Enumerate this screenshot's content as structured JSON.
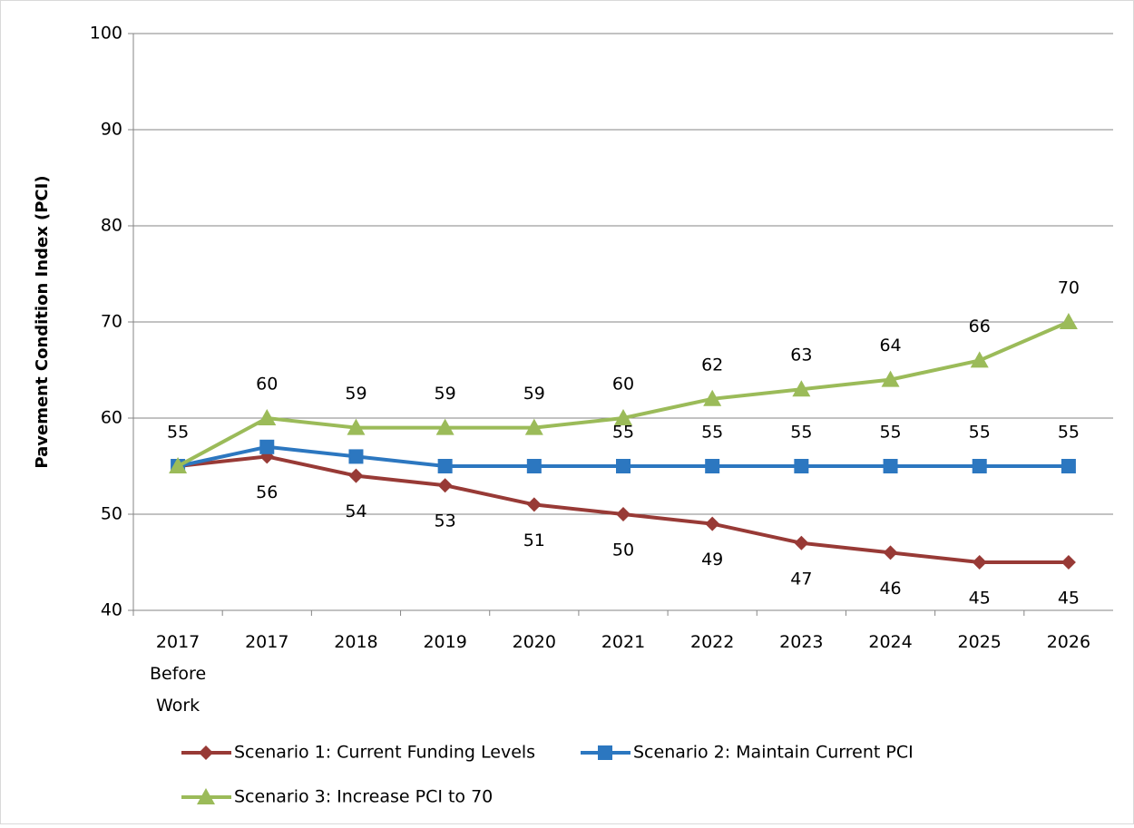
{
  "chart_data": {
    "type": "line",
    "y_label": "Pavement Condition Index (PCI)",
    "categories": [
      "2017 Before Work",
      "2017",
      "2018",
      "2019",
      "2020",
      "2021",
      "2022",
      "2023",
      "2024",
      "2025",
      "2026"
    ],
    "series": [
      {
        "name": "Scenario 1: Current Funding Levels",
        "color": "#983a36",
        "marker": "diamond",
        "label_side": "below",
        "values": [
          55,
          56,
          54,
          53,
          51,
          50,
          49,
          47,
          46,
          45,
          45
        ],
        "value_labels": [
          null,
          "56",
          "54",
          "53",
          "51",
          "50",
          "49",
          "47",
          "46",
          "45",
          "45"
        ]
      },
      {
        "name": "Scenario 2: Maintain Current PCI",
        "color": "#2c77c0",
        "marker": "square",
        "label_side": "above",
        "values": [
          55,
          57,
          56,
          55,
          55,
          55,
          55,
          55,
          55,
          55,
          55
        ],
        "value_labels": [
          null,
          null,
          null,
          null,
          null,
          "55",
          "55",
          "55",
          "55",
          "55",
          "55"
        ]
      },
      {
        "name": "Scenario 3: Increase PCI to 70",
        "color": "#9bbb59",
        "marker": "triangle",
        "label_side": "above",
        "values": [
          55,
          60,
          59,
          59,
          59,
          60,
          62,
          63,
          64,
          66,
          70
        ],
        "value_labels": [
          "55",
          "60",
          "59",
          "59",
          "59",
          "60",
          "62",
          "63",
          "64",
          "66",
          "70"
        ]
      }
    ],
    "ylim": [
      40,
      100
    ],
    "yticks": [
      40,
      50,
      60,
      70,
      80,
      90,
      100
    ],
    "grid": true
  }
}
